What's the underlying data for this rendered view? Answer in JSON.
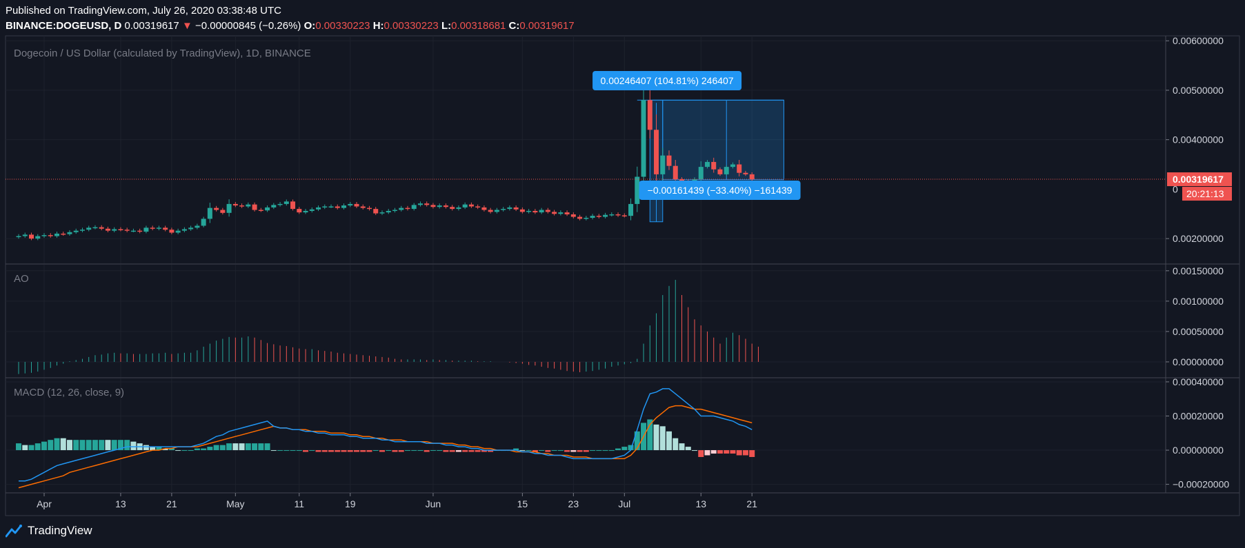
{
  "header": {
    "published": "Published on TradingView.com, July 26, 2020 03:38:48 UTC",
    "symbol": "BINANCE:DOGEUSD, D",
    "last": "0.00319617",
    "change": "−0.00000845 (−0.26%)",
    "o_label": "O:",
    "o_value": "0.00330223",
    "h_label": "H:",
    "h_value": "0.00330223",
    "l_label": "L:",
    "l_value": "0.00318681",
    "c_label": "C:",
    "c_value": "0.00319617"
  },
  "footer": {
    "brand": "TradingView"
  },
  "colors": {
    "background": "#131722",
    "up": "#26a69a",
    "down": "#ef5350",
    "ao_up": "#26a69a",
    "ao_down": "#ef5350",
    "macd_line": "#2196f3",
    "signal_line": "#ff6d00",
    "hist_up_strong": "#26a69a",
    "hist_up_weak": "#b2dfdb",
    "hist_down_strong": "#ef5350",
    "hist_down_weak": "#ffcdd2",
    "measure": "#2196f3"
  },
  "chart_data": [
    {
      "type": "candlestick",
      "title": "Dogecoin / US Dollar (calculated by TradingView), 1D, BINANCE",
      "ylim": [
        0.0015,
        0.0061
      ],
      "y_ticks": [
        "0.00600000",
        "0.00500000",
        "0.00400000",
        "0.00200000"
      ],
      "x_ticks": [
        {
          "day": 0,
          "label": "Apr"
        },
        {
          "day": 12,
          "label": "13"
        },
        {
          "day": 20,
          "label": "21"
        },
        {
          "day": 30,
          "label": "May"
        },
        {
          "day": 40,
          "label": "11"
        },
        {
          "day": 48,
          "label": "19"
        },
        {
          "day": 61,
          "label": "Jun"
        },
        {
          "day": 75,
          "label": "15"
        },
        {
          "day": 83,
          "label": "23"
        },
        {
          "day": 91,
          "label": "Jul"
        },
        {
          "day": 103,
          "label": "13"
        },
        {
          "day": 111,
          "label": "21"
        }
      ],
      "start_day": -4,
      "closes": [
        0.00205,
        0.00208,
        0.002,
        0.00205,
        0.00207,
        0.00205,
        0.0021,
        0.00209,
        0.00213,
        0.00216,
        0.00218,
        0.00222,
        0.00223,
        0.0022,
        0.00216,
        0.00219,
        0.00218,
        0.00216,
        0.00216,
        0.00214,
        0.00222,
        0.0022,
        0.00222,
        0.00218,
        0.00212,
        0.00216,
        0.00219,
        0.00222,
        0.00226,
        0.0024,
        0.00262,
        0.00258,
        0.00252,
        0.0027,
        0.00267,
        0.00265,
        0.00269,
        0.00258,
        0.00257,
        0.00263,
        0.00268,
        0.0027,
        0.00275,
        0.0026,
        0.00253,
        0.00256,
        0.00259,
        0.00263,
        0.00265,
        0.00265,
        0.00262,
        0.00267,
        0.0027,
        0.00265,
        0.00262,
        0.0026,
        0.00251,
        0.00253,
        0.00256,
        0.00258,
        0.00262,
        0.0026,
        0.00268,
        0.00271,
        0.00268,
        0.00264,
        0.00267,
        0.00264,
        0.0026,
        0.00263,
        0.00269,
        0.00265,
        0.00263,
        0.00258,
        0.00254,
        0.00258,
        0.0026,
        0.00263,
        0.00259,
        0.00254,
        0.00256,
        0.00253,
        0.00258,
        0.00254,
        0.0025,
        0.00253,
        0.00249,
        0.00244,
        0.0024,
        0.00242,
        0.00246,
        0.00244,
        0.00248,
        0.00249,
        0.00247,
        0.00246,
        0.0027,
        0.00325,
        0.0048,
        0.0042,
        0.0033,
        0.00368,
        0.00347,
        0.0032,
        0.00315,
        0.0031,
        0.0032,
        0.00345,
        0.00355,
        0.0034,
        0.0033,
        0.00345,
        0.0035,
        0.00333,
        0.0033,
        0.0032
      ],
      "last_price_label": "0.00319617",
      "countdown": "20:21:13",
      "hidden_tick_label": "0",
      "measure_up": {
        "text": "0.00246407 (104.81%) 246407",
        "from_day": 95,
        "from": 0.00234,
        "to": 0.0048
      },
      "measure_down": {
        "text": "−0.00161439 (−33.40%) −161439",
        "to_day": 116,
        "from": 0.0048,
        "to": 0.00319
      }
    },
    {
      "type": "bar",
      "title": "AO",
      "ylim": [
        -0.00025,
        0.0016
      ],
      "y_ticks": [
        "0.00150000",
        "0.00100000",
        "0.00050000",
        "0.00000000"
      ],
      "values": [
        -0.0002,
        -0.00019,
        -0.00018,
        -0.00016,
        -0.00013,
        -0.0001,
        -6e-05,
        -3e-05,
        1e-05,
        3e-05,
        5e-05,
        8e-05,
        0.00011,
        0.00012,
        0.00014,
        0.00015,
        0.00014,
        0.00014,
        0.00013,
        0.00013,
        0.00013,
        0.00014,
        0.00014,
        0.00015,
        0.00013,
        0.00014,
        0.00015,
        0.00015,
        0.00019,
        0.00025,
        0.0003,
        0.00035,
        0.00038,
        0.00041,
        0.0004,
        0.0004,
        0.00042,
        0.0004,
        0.00036,
        0.00031,
        0.00029,
        0.00027,
        0.00026,
        0.00024,
        0.00022,
        0.00021,
        0.00021,
        0.00019,
        0.00018,
        0.00017,
        0.00015,
        0.00014,
        0.00013,
        0.00012,
        0.00011,
        0.0001,
        9e-05,
        8e-05,
        7e-05,
        5e-05,
        4e-05,
        4e-05,
        4e-05,
        4e-05,
        3e-05,
        4e-05,
        3e-05,
        3e-05,
        2e-05,
        2e-05,
        2e-05,
        2e-05,
        1e-05,
        1e-05,
        1e-05,
        0.0,
        0.0,
        -1e-05,
        -2e-05,
        -3e-05,
        -5e-05,
        -6e-05,
        -8e-05,
        -0.0001,
        -0.00011,
        -0.00013,
        -0.00015,
        -0.00016,
        -0.00017,
        -0.00016,
        -0.00015,
        -0.00013,
        -0.00011,
        -8e-05,
        -6e-05,
        -4e-05,
        -2e-05,
        5e-05,
        0.0003,
        0.0006,
        0.0008,
        0.0011,
        0.00125,
        0.00135,
        0.0011,
        0.0009,
        0.0007,
        0.0006,
        0.0005,
        0.0004,
        0.0003,
        0.0004,
        0.00048,
        0.00044,
        0.00038,
        0.0003,
        0.00025
      ]
    },
    {
      "type": "line",
      "title": "MACD (12, 26, close, 9)",
      "ylim": [
        -0.00025,
        0.00042
      ],
      "y_ticks": [
        "0.00040000",
        "0.00020000",
        "0.00000000",
        "−0.00020000"
      ],
      "macd": [
        -0.00018,
        -0.00018,
        -0.00017,
        -0.00015,
        -0.00013,
        -0.00011,
        -9e-05,
        -8e-05,
        -7e-05,
        -6e-05,
        -5e-05,
        -4e-05,
        -3e-05,
        -2e-05,
        -1e-05,
        0.0,
        1e-05,
        2e-05,
        2e-05,
        2e-05,
        2e-05,
        2e-05,
        2e-05,
        2e-05,
        2e-05,
        2e-05,
        2e-05,
        2e-05,
        3e-05,
        4e-05,
        6e-05,
        8e-05,
        9e-05,
        0.00011,
        0.00012,
        0.00013,
        0.00014,
        0.00015,
        0.00016,
        0.00017,
        0.00014,
        0.00013,
        0.00013,
        0.00012,
        0.00012,
        0.00011,
        0.00011,
        0.0001,
        0.0001,
        9e-05,
        9e-05,
        9e-05,
        8e-05,
        8e-05,
        7e-05,
        7e-05,
        7e-05,
        6e-05,
        6e-05,
        5e-05,
        5e-05,
        5e-05,
        5e-05,
        5e-05,
        4e-05,
        4e-05,
        4e-05,
        3e-05,
        3e-05,
        2e-05,
        2e-05,
        1e-05,
        1e-05,
        0.0,
        0.0,
        0.0,
        0.0,
        0.0,
        0.0,
        -1e-05,
        -1e-05,
        -2e-05,
        -2e-05,
        -3e-05,
        -3e-05,
        -3e-05,
        -4e-05,
        -5e-05,
        -5e-05,
        -5e-05,
        -5e-05,
        -5e-05,
        -5e-05,
        -5e-05,
        -4e-05,
        -3e-05,
        0.0,
        0.00012,
        0.00024,
        0.00033,
        0.00034,
        0.00036,
        0.00036,
        0.00033,
        0.0003,
        0.00027,
        0.00024,
        0.0002,
        0.0002,
        0.0002,
        0.00019,
        0.00018,
        0.00017,
        0.00015,
        0.00014,
        0.00012
      ],
      "signal": [
        -0.00022,
        -0.00021,
        -0.0002,
        -0.00019,
        -0.00018,
        -0.00017,
        -0.00016,
        -0.00015,
        -0.00013,
        -0.00012,
        -0.00011,
        -0.0001,
        -9e-05,
        -8e-05,
        -7e-05,
        -6e-05,
        -5e-05,
        -4e-05,
        -3e-05,
        -2e-05,
        -1e-05,
        0.0,
        0.0,
        1e-05,
        1e-05,
        2e-05,
        2e-05,
        2e-05,
        2e-05,
        3e-05,
        4e-05,
        5e-05,
        6e-05,
        7e-05,
        8e-05,
        9e-05,
        0.0001,
        0.00011,
        0.00012,
        0.00013,
        0.00014,
        0.00013,
        0.00013,
        0.00012,
        0.00012,
        0.00012,
        0.00011,
        0.00011,
        0.00011,
        0.0001,
        0.0001,
        0.0001,
        9e-05,
        9e-05,
        8e-05,
        8e-05,
        7e-05,
        7e-05,
        6e-05,
        6e-05,
        6e-05,
        5e-05,
        5e-05,
        5e-05,
        5e-05,
        4e-05,
        4e-05,
        4e-05,
        4e-05,
        3e-05,
        3e-05,
        2e-05,
        2e-05,
        1e-05,
        1e-05,
        0.0,
        0.0,
        0.0,
        -1e-05,
        -1e-05,
        -1e-05,
        -1e-05,
        -2e-05,
        -2e-05,
        -3e-05,
        -3e-05,
        -3e-05,
        -4e-05,
        -4e-05,
        -4e-05,
        -5e-05,
        -5e-05,
        -5e-05,
        -5e-05,
        -5e-05,
        -5e-05,
        -3e-05,
        1e-05,
        8e-05,
        0.00015,
        0.00019,
        0.00022,
        0.00025,
        0.00026,
        0.00026,
        0.00025,
        0.00024,
        0.00024,
        0.00023,
        0.00022,
        0.00021,
        0.0002,
        0.00019,
        0.00018,
        0.00017,
        0.00016
      ]
    }
  ]
}
